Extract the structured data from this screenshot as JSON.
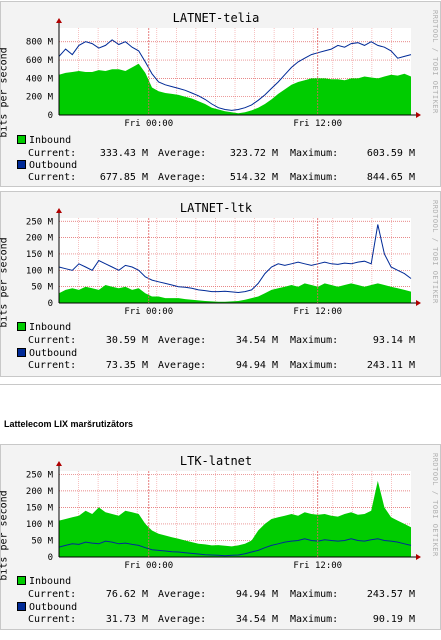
{
  "section_title": "Lattelecom LIX maršrutizātors",
  "credit": "RRDTOOL / TOBI OETIKER",
  "colors": {
    "inbound": "#00cc00",
    "outbound": "#002a97",
    "grid": "#f4a8a8",
    "plot_bg": "#ffffff",
    "panel_bg": "#f3f3f3"
  },
  "chart_data": [
    {
      "type": "area",
      "title": "LATNET-telia",
      "ylabel": "bits per second",
      "yticks": [
        "0",
        "200 M",
        "400 M",
        "600 M",
        "800 M"
      ],
      "ylim": [
        0,
        950
      ],
      "xticks": [
        "Fri 00:00",
        "Fri 12:00"
      ],
      "series": [
        {
          "name": "Inbound",
          "kind": "area",
          "values": [
            440,
            460,
            470,
            480,
            470,
            470,
            490,
            480,
            500,
            500,
            480,
            520,
            560,
            460,
            300,
            260,
            240,
            230,
            220,
            200,
            180,
            150,
            120,
            80,
            60,
            40,
            30,
            20,
            30,
            50,
            80,
            120,
            170,
            230,
            280,
            330,
            360,
            380,
            400,
            400,
            400,
            390,
            390,
            380,
            400,
            400,
            420,
            410,
            400,
            420,
            440,
            430,
            450,
            420
          ]
        },
        {
          "name": "Outbound",
          "kind": "line",
          "values": [
            640,
            720,
            660,
            760,
            800,
            780,
            730,
            760,
            820,
            770,
            800,
            740,
            700,
            580,
            450,
            360,
            330,
            310,
            290,
            270,
            240,
            210,
            170,
            120,
            80,
            60,
            50,
            60,
            80,
            110,
            160,
            220,
            290,
            360,
            440,
            520,
            580,
            620,
            660,
            680,
            700,
            720,
            760,
            740,
            780,
            790,
            760,
            800,
            760,
            740,
            700,
            620,
            640,
            660
          ]
        }
      ],
      "stats": [
        {
          "label": "Inbound",
          "current": "333.43 M",
          "average": "323.72 M",
          "maximum": "603.59 M"
        },
        {
          "label": "Outbound",
          "current": "677.85 M",
          "average": "514.32 M",
          "maximum": "844.65 M"
        }
      ]
    },
    {
      "type": "area",
      "title": "LATNET-ltk",
      "ylabel": "bits per second",
      "yticks": [
        "0",
        "50 M",
        "100 M",
        "150 M",
        "200 M",
        "250 M"
      ],
      "ylim": [
        0,
        260
      ],
      "xticks": [
        "Fri 00:00",
        "Fri 12:00"
      ],
      "series": [
        {
          "name": "Inbound",
          "kind": "area",
          "values": [
            30,
            40,
            45,
            40,
            50,
            45,
            40,
            55,
            50,
            45,
            50,
            40,
            45,
            30,
            20,
            20,
            15,
            15,
            15,
            12,
            10,
            8,
            6,
            5,
            4,
            4,
            5,
            6,
            10,
            15,
            20,
            30,
            40,
            45,
            50,
            55,
            50,
            60,
            55,
            50,
            60,
            55,
            50,
            55,
            60,
            55,
            50,
            55,
            60,
            55,
            50,
            45,
            40,
            35
          ]
        },
        {
          "name": "Outbound",
          "kind": "line",
          "values": [
            110,
            105,
            100,
            120,
            110,
            100,
            130,
            120,
            110,
            100,
            115,
            110,
            100,
            80,
            70,
            65,
            60,
            55,
            50,
            48,
            45,
            40,
            38,
            35,
            35,
            36,
            34,
            32,
            35,
            40,
            60,
            90,
            110,
            120,
            115,
            120,
            125,
            120,
            115,
            120,
            125,
            120,
            118,
            122,
            120,
            125,
            128,
            120,
            240,
            150,
            110,
            100,
            90,
            75
          ]
        }
      ],
      "stats": [
        {
          "label": "Inbound",
          "current": "30.59 M",
          "average": "34.54 M",
          "maximum": "93.14 M"
        },
        {
          "label": "Outbound",
          "current": "73.35 M",
          "average": "94.94 M",
          "maximum": "243.11 M"
        }
      ]
    },
    {
      "type": "area",
      "title": "LTK-latnet",
      "ylabel": "bits per second",
      "yticks": [
        "0",
        "50 M",
        "100 M",
        "150 M",
        "200 M",
        "250 M"
      ],
      "ylim": [
        0,
        260
      ],
      "xticks": [
        "Fri 00:00",
        "Fri 12:00"
      ],
      "series": [
        {
          "name": "Inbound",
          "kind": "area",
          "values": [
            110,
            115,
            120,
            125,
            140,
            130,
            150,
            135,
            130,
            125,
            140,
            135,
            130,
            100,
            80,
            70,
            65,
            60,
            55,
            50,
            45,
            40,
            38,
            35,
            36,
            34,
            32,
            35,
            40,
            50,
            80,
            100,
            115,
            120,
            125,
            130,
            125,
            135,
            130,
            128,
            130,
            125,
            122,
            130,
            135,
            128,
            130,
            140,
            230,
            150,
            120,
            110,
            100,
            90
          ]
        },
        {
          "name": "Outbound",
          "kind": "line",
          "values": [
            30,
            35,
            40,
            38,
            45,
            42,
            40,
            48,
            45,
            40,
            42,
            38,
            35,
            28,
            22,
            20,
            18,
            16,
            15,
            13,
            11,
            9,
            7,
            6,
            5,
            4,
            5,
            6,
            10,
            15,
            20,
            28,
            35,
            40,
            45,
            48,
            50,
            55,
            50,
            48,
            52,
            50,
            48,
            50,
            55,
            50,
            48,
            52,
            55,
            50,
            48,
            45,
            40,
            35
          ]
        }
      ],
      "stats": [
        {
          "label": "Inbound",
          "current": "76.62 M",
          "average": "94.94 M",
          "maximum": "243.57 M"
        },
        {
          "label": "Outbound",
          "current": "31.73 M",
          "average": "34.54 M",
          "maximum": "90.19 M"
        }
      ]
    }
  ]
}
